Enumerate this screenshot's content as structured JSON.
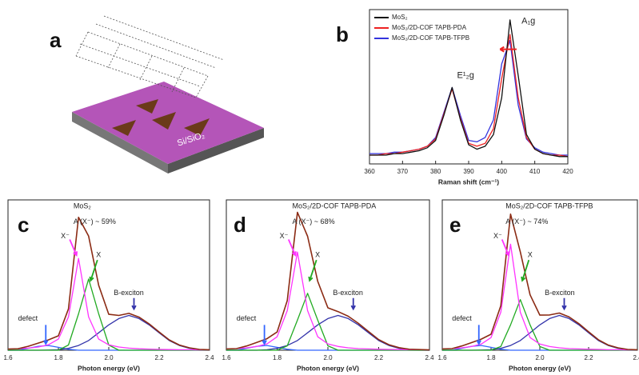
{
  "schematic": {
    "label": "a",
    "substrate": "Si/SiO₂"
  },
  "chart_data": [
    {
      "type": "line",
      "panel_label": "b",
      "x_label": "Raman shift (cm⁻¹)",
      "legend": "upper left",
      "annotations": [
        "E¹₂g",
        "A₁g"
      ],
      "xlim": [
        360,
        420
      ],
      "xticks": [
        360,
        370,
        380,
        390,
        400,
        410,
        420
      ],
      "ylim": [
        0,
        1.05
      ],
      "x": [
        360,
        362.5,
        365,
        367.5,
        370,
        372.5,
        375,
        377.5,
        380,
        382.5,
        385,
        387.5,
        390,
        392.5,
        395,
        397.5,
        400,
        402.5,
        405,
        407.5,
        410,
        412.5,
        415,
        417.5,
        420
      ],
      "series": [
        {
          "name": "MoS₂",
          "color": "#111111",
          "values": [
            0.06,
            0.06,
            0.06,
            0.07,
            0.07,
            0.08,
            0.09,
            0.11,
            0.16,
            0.33,
            0.52,
            0.3,
            0.13,
            0.1,
            0.12,
            0.2,
            0.45,
            0.98,
            0.6,
            0.2,
            0.1,
            0.07,
            0.06,
            0.05,
            0.05
          ]
        },
        {
          "name": "MoS₂/2D-COF TAPB-PDA",
          "color": "#ee2222",
          "values": [
            0.06,
            0.06,
            0.07,
            0.07,
            0.08,
            0.09,
            0.1,
            0.12,
            0.17,
            0.34,
            0.51,
            0.31,
            0.14,
            0.12,
            0.14,
            0.24,
            0.58,
            0.88,
            0.45,
            0.18,
            0.1,
            0.07,
            0.06,
            0.06,
            0.05
          ]
        },
        {
          "name": "MoS₂/2D-COF TAPB-TFPB",
          "color": "#3333dd",
          "values": [
            0.07,
            0.07,
            0.07,
            0.08,
            0.08,
            0.09,
            0.1,
            0.12,
            0.18,
            0.35,
            0.52,
            0.33,
            0.16,
            0.15,
            0.18,
            0.3,
            0.68,
            0.84,
            0.4,
            0.17,
            0.11,
            0.08,
            0.07,
            0.06,
            0.06
          ]
        }
      ]
    },
    {
      "type": "line",
      "panel_label": "c",
      "x_label": "Photon energy (eV)",
      "annotations": [
        "MoS₂",
        "A (X⁻) ~ 59%",
        "X⁻",
        "X",
        "B-exciton",
        "defect"
      ],
      "xlim": [
        1.6,
        2.4
      ],
      "xticks": [
        1.6,
        1.8,
        {
          "value": 2,
          "label": "2.0"
        },
        2.2,
        2.4
      ],
      "ylim": [
        0,
        0.95
      ],
      "x": [
        1.6,
        1.64,
        1.68,
        1.72,
        1.76,
        1.8,
        1.84,
        1.88,
        1.92,
        1.96,
        2.0,
        2.04,
        2.08,
        2.12,
        2.16,
        2.2,
        2.24,
        2.28,
        2.32,
        2.36,
        2.4
      ],
      "series": [
        {
          "color": "#8b2b14",
          "values": [
            0.007,
            0.009,
            0.025,
            0.045,
            0.065,
            0.091,
            0.261,
            0.84,
            0.721,
            0.41,
            0.227,
            0.22,
            0.233,
            0.209,
            0.167,
            0.115,
            0.065,
            0.033,
            0.015,
            0.005,
            0.003
          ]
        },
        {
          "color": "#ff33ff",
          "values": [
            0.007,
            0.009,
            0.013,
            0.02,
            0.034,
            0.07,
            0.21,
            0.58,
            0.21,
            0.07,
            0.034,
            0.02,
            0.013,
            0.009,
            0.007,
            0.005,
            0.004,
            0.003,
            0.003,
            0.002,
            0.002
          ]
        },
        {
          "color": "#22aa22",
          "values": [
            0,
            0,
            0,
            0,
            0,
            0,
            0.033,
            0.23,
            0.45,
            0.23,
            0.033,
            0,
            0,
            0,
            0,
            0,
            0,
            0,
            0,
            0,
            0
          ]
        },
        {
          "color": "#3333aa",
          "values": [
            0,
            0,
            0,
            0,
            0.001,
            0.003,
            0.012,
            0.03,
            0.061,
            0.11,
            0.16,
            0.2,
            0.22,
            0.2,
            0.16,
            0.11,
            0.061,
            0.03,
            0.012,
            0.003,
            0.001
          ]
        },
        {
          "color": "#3366ff",
          "values": [
            0,
            0,
            0.012,
            0.025,
            0.03,
            0.018,
            0.006,
            0,
            0,
            0,
            0,
            0,
            0,
            0,
            0,
            0,
            0,
            0,
            0,
            0,
            0
          ]
        }
      ]
    },
    {
      "type": "line",
      "panel_label": "d",
      "x_label": "Photon energy (eV)",
      "annotations": [
        "MoS₂/2D-COF TAPB-PDA",
        "A (X⁻) ~ 68%",
        "X⁻",
        "X",
        "B-exciton",
        "defect"
      ],
      "xlim": [
        1.6,
        2.4
      ],
      "xticks": [
        1.6,
        1.8,
        {
          "value": 2,
          "label": "2.0"
        },
        2.2,
        2.4
      ],
      "ylim": [
        0,
        0.95
      ],
      "x": [
        1.6,
        1.64,
        1.68,
        1.72,
        1.76,
        1.8,
        1.84,
        1.88,
        1.92,
        1.96,
        2.0,
        2.04,
        2.08,
        2.12,
        2.16,
        2.2,
        2.24,
        2.28,
        2.32,
        2.36,
        2.4
      ],
      "series": [
        {
          "color": "#8b2b14",
          "values": [
            0.008,
            0.01,
            0.027,
            0.049,
            0.073,
            0.115,
            0.314,
            0.871,
            0.72,
            0.435,
            0.268,
            0.244,
            0.215,
            0.17,
            0.118,
            0.067,
            0.035,
            0.016,
            0.006,
            0.004,
            0.002
          ]
        },
        {
          "color": "#ff33ff",
          "values": [
            0.008,
            0.01,
            0.015,
            0.024,
            0.04,
            0.085,
            0.25,
            0.62,
            0.25,
            0.085,
            0.04,
            0.024,
            0.015,
            0.01,
            0.008,
            0.006,
            0.005,
            0.004,
            0.003,
            0.003,
            0.002
          ]
        },
        {
          "color": "#22aa22",
          "values": [
            0,
            0,
            0,
            0,
            0,
            0,
            0.028,
            0.19,
            0.36,
            0.19,
            0.028,
            0,
            0,
            0,
            0,
            0,
            0,
            0,
            0,
            0,
            0
          ]
        },
        {
          "color": "#3333aa",
          "values": [
            0,
            0,
            0,
            0,
            0.003,
            0.012,
            0.03,
            0.061,
            0.11,
            0.16,
            0.2,
            0.22,
            0.2,
            0.16,
            0.11,
            0.061,
            0.03,
            0.012,
            0.003,
            0.001,
            0
          ]
        },
        {
          "color": "#3366ff",
          "values": [
            0,
            0,
            0.012,
            0.025,
            0.03,
            0.018,
            0.006,
            0,
            0,
            0,
            0,
            0,
            0,
            0,
            0,
            0,
            0,
            0,
            0,
            0,
            0
          ]
        }
      ]
    },
    {
      "type": "line",
      "panel_label": "e",
      "x_label": "Photon energy (eV)",
      "annotations": [
        "MoS₂/2D-COF TAPB-TFPB",
        "A (X⁻) ~ 74%",
        "X⁻",
        "X",
        "B-exciton",
        "defect"
      ],
      "xlim": [
        1.6,
        2.4
      ],
      "xticks": [
        1.6,
        1.8,
        {
          "value": 2,
          "label": "2.0"
        },
        2.2,
        2.4
      ],
      "ylim": [
        0,
        0.95
      ],
      "x": [
        1.6,
        1.64,
        1.68,
        1.72,
        1.76,
        1.8,
        1.84,
        1.88,
        1.92,
        1.96,
        2.0,
        2.04,
        2.08,
        2.12,
        2.16,
        2.2,
        2.24,
        2.28,
        2.32,
        2.36,
        2.4
      ],
      "series": [
        {
          "color": "#8b2b14",
          "values": [
            0.008,
            0.01,
            0.027,
            0.048,
            0.07,
            0.101,
            0.281,
            0.86,
            0.621,
            0.35,
            0.222,
            0.223,
            0.235,
            0.21,
            0.168,
            0.116,
            0.066,
            0.033,
            0.015,
            0.005,
            0.003
          ]
        },
        {
          "color": "#ff33ff",
          "values": [
            0.008,
            0.01,
            0.015,
            0.023,
            0.039,
            0.08,
            0.24,
            0.67,
            0.24,
            0.08,
            0.039,
            0.023,
            0.015,
            0.01,
            0.008,
            0.006,
            0.005,
            0.003,
            0.003,
            0.002,
            0.002
          ]
        },
        {
          "color": "#22aa22",
          "values": [
            0,
            0,
            0,
            0,
            0,
            0,
            0.023,
            0.16,
            0.32,
            0.16,
            0.023,
            0,
            0,
            0,
            0,
            0,
            0,
            0,
            0,
            0,
            0
          ]
        },
        {
          "color": "#3333aa",
          "values": [
            0,
            0,
            0,
            0,
            0.001,
            0.003,
            0.012,
            0.03,
            0.061,
            0.11,
            0.16,
            0.2,
            0.22,
            0.2,
            0.16,
            0.11,
            0.061,
            0.03,
            0.012,
            0.003,
            0.001
          ]
        },
        {
          "color": "#3366ff",
          "values": [
            0,
            0,
            0.012,
            0.025,
            0.03,
            0.018,
            0.006,
            0,
            0,
            0,
            0,
            0,
            0,
            0,
            0,
            0,
            0,
            0,
            0,
            0,
            0
          ]
        }
      ]
    }
  ]
}
